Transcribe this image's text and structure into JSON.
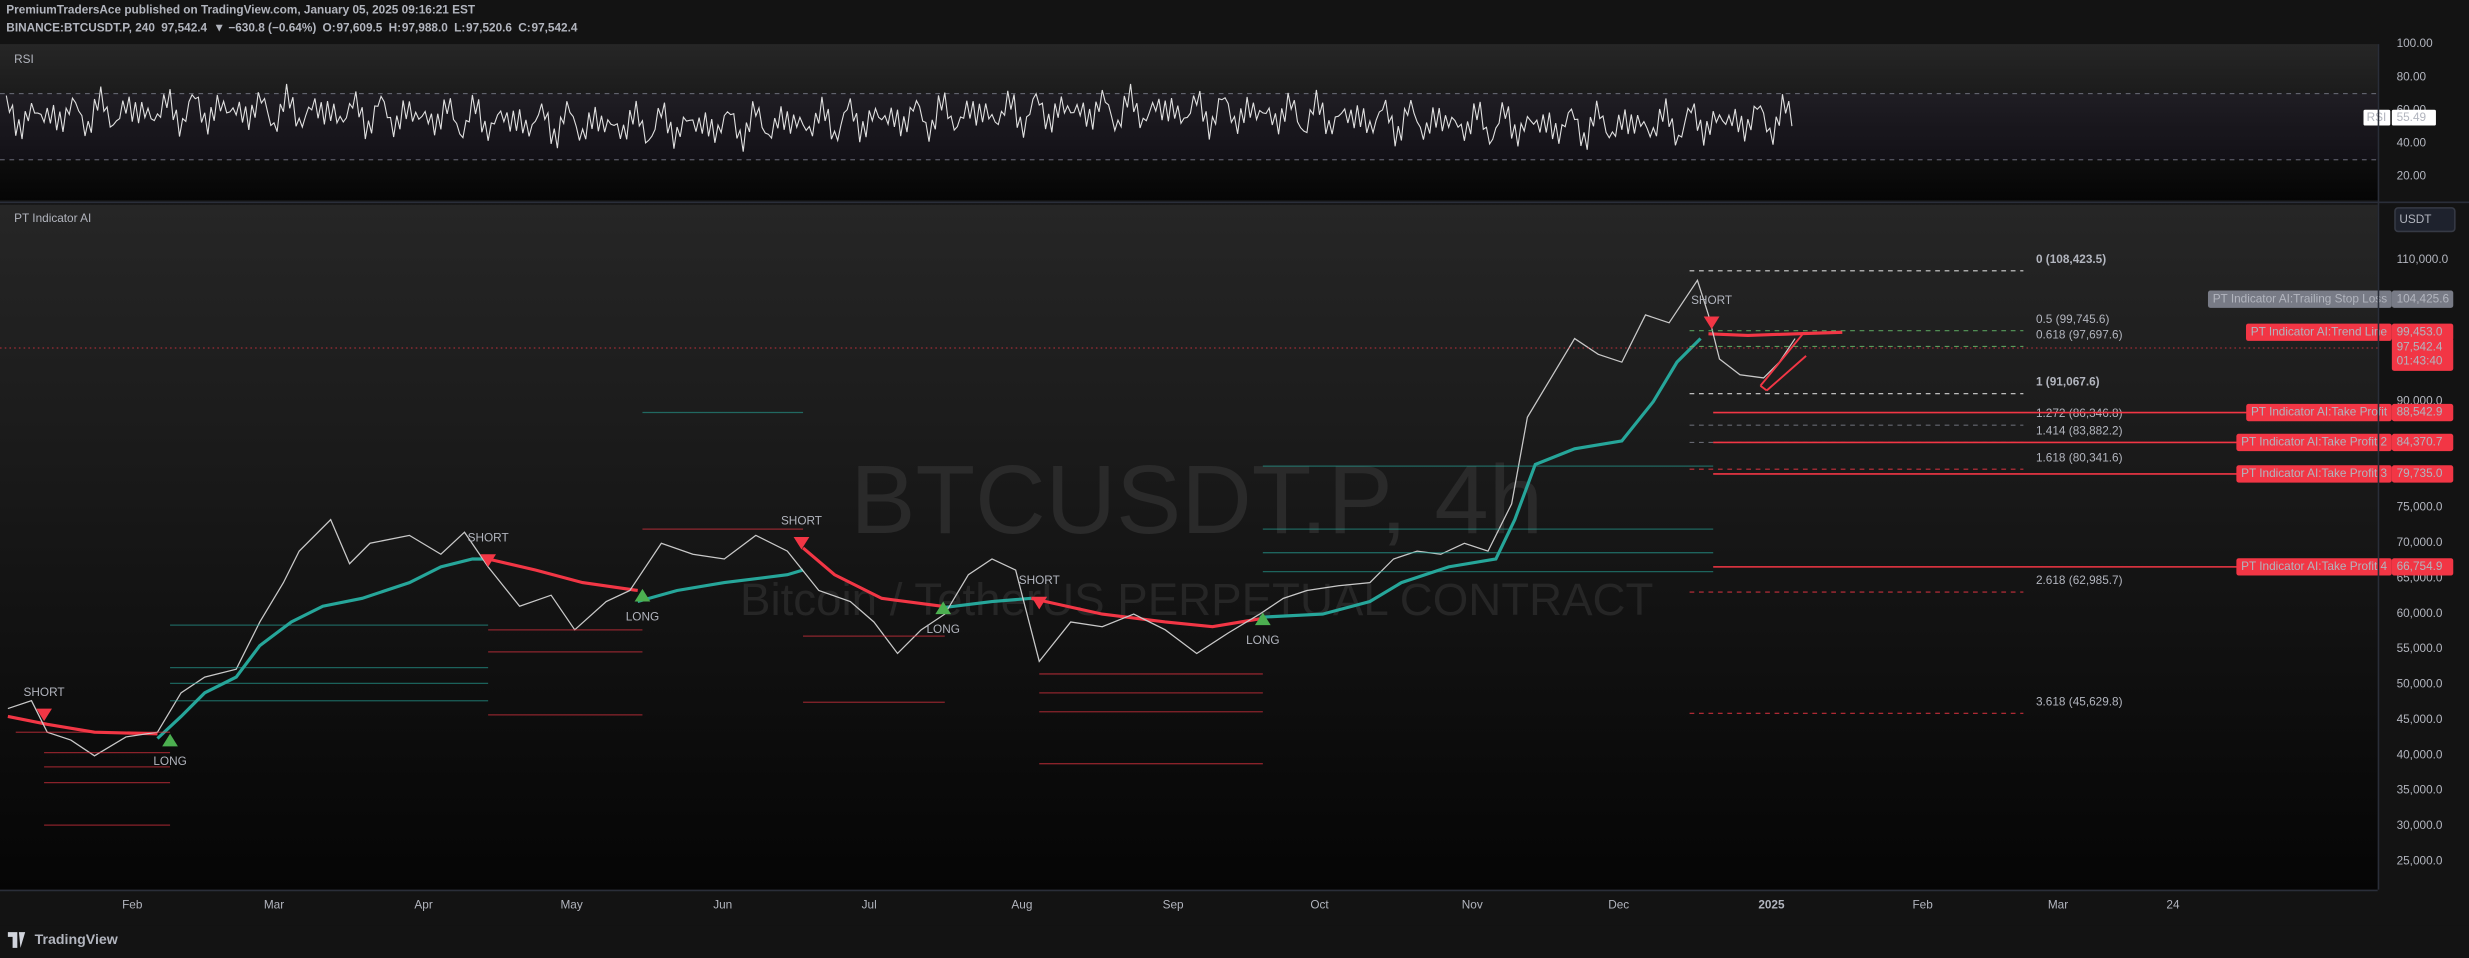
{
  "header": {
    "line1": "PremiumTradersAce published on TradingView.com, January 05, 2025 09:16:21 EST",
    "symbol": "BINANCE:BTCUSDT.P, 240",
    "last": "97,542.4",
    "change": "▼ −630.8 (−0.64%)",
    "ohlc": [
      {
        "label": "O:",
        "value": "97,609.5"
      },
      {
        "label": "H:",
        "value": "97,988.0"
      },
      {
        "label": "L:",
        "value": "97,520.6"
      },
      {
        "label": "C:",
        "value": "97,542.4"
      }
    ]
  },
  "rsi": {
    "title": "RSI",
    "ylim": [
      5.7,
      100
    ],
    "yticks": [
      {
        "value": 100,
        "label": "100.00"
      },
      {
        "value": 80,
        "label": "80.00"
      },
      {
        "value": 60,
        "label": "60.00"
      },
      {
        "value": 40,
        "label": "40.00"
      },
      {
        "value": 20,
        "label": "20.00"
      }
    ],
    "badge": "RSI",
    "last": 55.49
  },
  "main": {
    "title": "PT Indicator AI",
    "currency": "USDT",
    "watermark_symbol": "BTCUSDT.P, 4h",
    "watermark_name": "Bitcoin / TetherUS PERPETUAL CONTRACT",
    "ylim": [
      21000,
      117790
    ],
    "yticks": [
      {
        "value": 110000,
        "label": "110,000.0"
      },
      {
        "value": 90000,
        "label": "90,000.0"
      },
      {
        "value": 75000,
        "label": "75,000.0"
      },
      {
        "value": 70000,
        "label": "70,000.0"
      },
      {
        "value": 65000,
        "label": "65,000.0"
      },
      {
        "value": 60000,
        "label": "60,000.0"
      },
      {
        "value": 55000,
        "label": "55,000.0"
      },
      {
        "value": 50000,
        "label": "50,000.0"
      },
      {
        "value": 45000,
        "label": "45,000.0"
      },
      {
        "value": 40000,
        "label": "40,000.0"
      },
      {
        "value": 35000,
        "label": "35,000.0"
      },
      {
        "value": 30000,
        "label": "30,000.0"
      },
      {
        "value": 25000,
        "label": "25,000.0"
      }
    ],
    "fib": [
      "0 (108,423.5)",
      "0.5 (99,745.6)",
      "0.618 (97,697.6)",
      "1 (91,067.6)",
      "1.272 (86,346.8)",
      "1.414 (83,882.2)",
      "1.618 (80,341.6)",
      "2.618 (62,985.7)",
      "3.618 (45,629.8)"
    ],
    "badges": [
      {
        "name": "PT Indicator AI:Trailing Stop Loss",
        "value": "104,425.6"
      },
      {
        "name": "PT Indicator AI:Trend Line",
        "value": "99,453.0"
      },
      {
        "name": "PT Indicator AI:Take Profit",
        "value": "88,542.9"
      },
      {
        "name": "PT Indicator AI:Take Profit 2",
        "value": "84,370.7"
      },
      {
        "name": "PT Indicator AI:Take Profit 3",
        "value": "79,735.0"
      },
      {
        "name": "PT Indicator AI:Take Profit 4",
        "value": "66,754.9"
      }
    ],
    "price_badge": {
      "value": "97,542.4",
      "countdown": "01:43:40"
    },
    "signals": [
      "SHORT",
      "LONG",
      "SHORT",
      "LONG",
      "SHORT",
      "LONG",
      "SHORT",
      "LONG",
      "SHORT"
    ]
  },
  "time_axis": [
    "Feb",
    "Mar",
    "Apr",
    "May",
    "Jun",
    "Jul",
    "Aug",
    "Sep",
    "Oct",
    "Nov",
    "Dec",
    "2025",
    "Feb",
    "Mar",
    "24"
  ],
  "footer": "TradingView"
}
